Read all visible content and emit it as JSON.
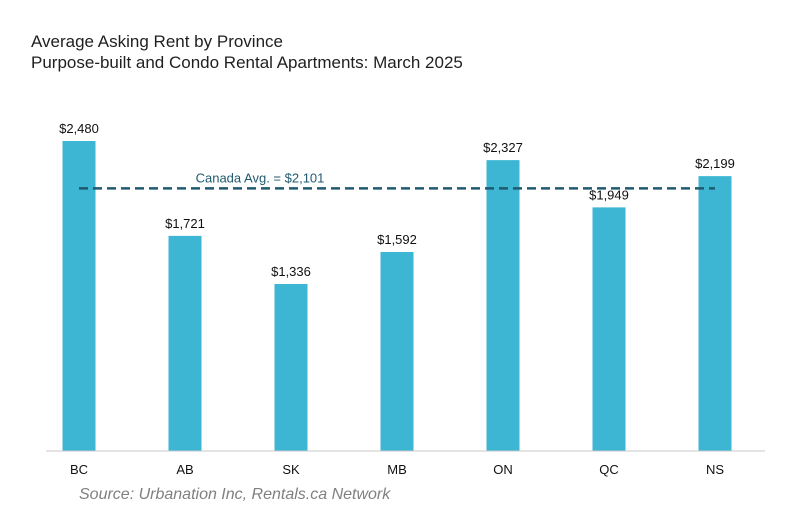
{
  "chart_data": {
    "type": "bar",
    "title": "Average Asking Rent by Province",
    "subtitle": "Purpose-built and Condo Rental Apartments: March 2025",
    "categories": [
      "BC",
      "AB",
      "SK",
      "MB",
      "ON",
      "QC",
      "NS"
    ],
    "values": [
      2480,
      1721,
      1336,
      1592,
      2327,
      1949,
      2199
    ],
    "data_labels": [
      "$2,480",
      "$1,721",
      "$1,336",
      "$1,592",
      "$2,327",
      "$1,949",
      "$2,199"
    ],
    "reference_line": {
      "label": "Canada Avg. = $2,101",
      "value": 2101,
      "style": "dashed"
    },
    "ylim": [
      0,
      2480
    ],
    "grid": false,
    "bar_color": "#3db6d3",
    "line_color": "#1f5a6e",
    "source": "Source: Urbanation Inc, Rentals.ca Network"
  }
}
